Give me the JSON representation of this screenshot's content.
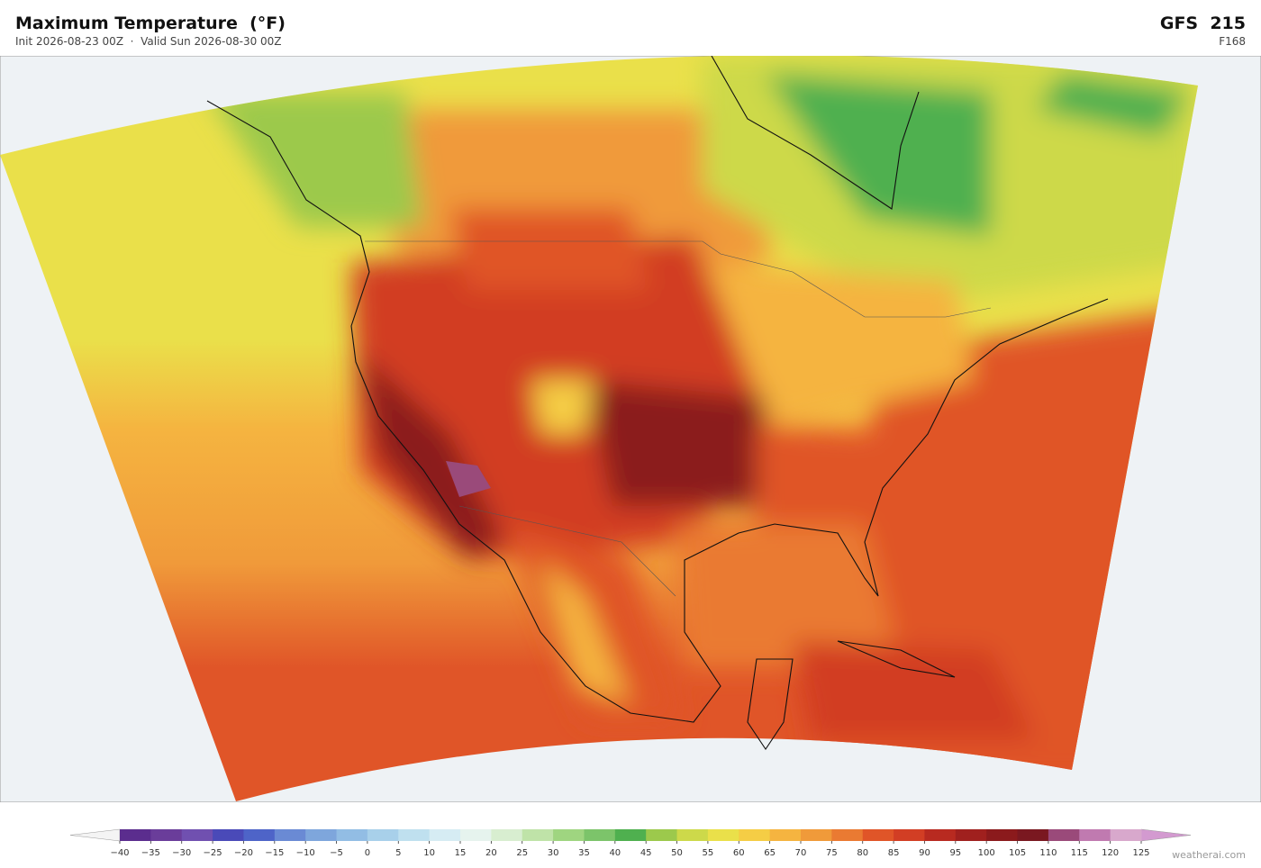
{
  "header": {
    "title": "Maximum Temperature  (°F)",
    "subtitle": "Init 2026-08-23 00Z  ·  Valid Sun 2026-08-30 00Z",
    "model": "GFS  215",
    "forecast_hour": "F168"
  },
  "colorbar": {
    "ticks": [
      {
        "value": -40,
        "label": "−40"
      },
      {
        "value": -35,
        "label": "−35"
      },
      {
        "value": -30,
        "label": "−30"
      },
      {
        "value": -25,
        "label": "−25"
      },
      {
        "value": -20,
        "label": "−20"
      },
      {
        "value": -15,
        "label": "−15"
      },
      {
        "value": -10,
        "label": "−10"
      },
      {
        "value": -5,
        "label": "−5"
      },
      0,
      5,
      10,
      15,
      20,
      25,
      30,
      35,
      40,
      45,
      50,
      55,
      60,
      65,
      70,
      75,
      80,
      85,
      90,
      95,
      100,
      105,
      110,
      115,
      120,
      125
    ],
    "colors": [
      "#5b2d8e",
      "#6a3d9a",
      "#7050b0",
      "#4a4ab8",
      "#4e64c8",
      "#6a8ad4",
      "#7ea6dc",
      "#92bde4",
      "#a8d0ea",
      "#bfe0ef",
      "#d6ecf3",
      "#e6f3ee",
      "#d8eed0",
      "#bfe3a8",
      "#9fd580",
      "#7cc46a",
      "#4fb04f",
      "#9cc94c",
      "#cdd94a",
      "#eae04a",
      "#f5cd45",
      "#f5b440",
      "#f09a3a",
      "#ea7a32",
      "#e05528",
      "#d23e24",
      "#b82a20",
      "#a0201e",
      "#8b1a1c",
      "#7a1820",
      "#9a4a7a",
      "#c07ab0",
      "#d8a8cc"
    ],
    "extend_colors": [
      "#f4f4f4",
      "#d39ad0"
    ]
  },
  "watermark": "weatherai.com"
}
